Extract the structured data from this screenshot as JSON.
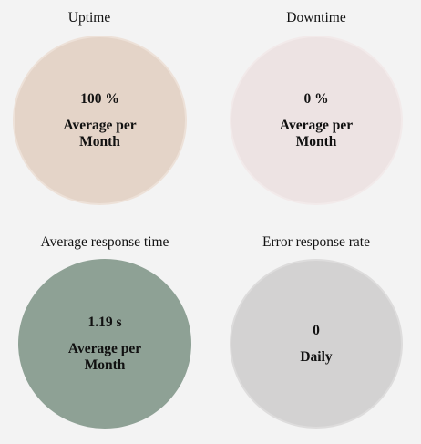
{
  "metrics": [
    {
      "title": "Uptime",
      "value": "100 %",
      "period": "Average per\nMonth",
      "color": "#e4d4c8",
      "border": "#ede1d8"
    },
    {
      "title": "Downtime",
      "value": "0 %",
      "period": "Average per\nMonth",
      "color": "#ede3e3",
      "border": "#f2eaea"
    },
    {
      "title": "Average response time",
      "value": "1.19 s",
      "period": "Average per\nMonth",
      "color": "#8ea195",
      "border": "#8ea195"
    },
    {
      "title": "Error response rate",
      "value": "0",
      "period": "Daily",
      "color": "#d3d2d2",
      "border": "#dddcdc"
    }
  ]
}
